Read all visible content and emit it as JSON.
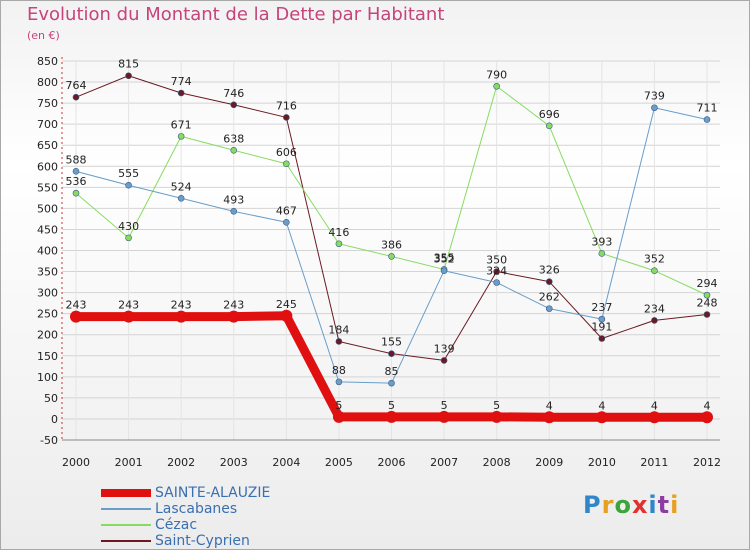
{
  "title": "Evolution du Montant de la Dette par Habitant",
  "subtitle": "(en €)",
  "logo": {
    "text": "Proxiti",
    "colors": [
      "#2f86c8",
      "#e8a020",
      "#3aa63a",
      "#e03030",
      "#2f86c8",
      "#8c3ea0",
      "#e8a020"
    ]
  },
  "chart_data": {
    "type": "line",
    "title": "Evolution du Montant de la Dette par Habitant",
    "ylabel": "(en €)",
    "x": [
      "2000",
      "2001",
      "2002",
      "2003",
      "2004",
      "2005",
      "2006",
      "2007",
      "2008",
      "2009",
      "2010",
      "2011",
      "2012"
    ],
    "ylim": [
      -50,
      850
    ],
    "yticks": [
      -50,
      0,
      50,
      100,
      150,
      200,
      250,
      300,
      350,
      400,
      450,
      500,
      550,
      600,
      650,
      700,
      750,
      800,
      850
    ],
    "grid": "horizontal",
    "legend_position": "bottom-left",
    "series": [
      {
        "name": "Saint-Cyprien",
        "color": "#6b1a22",
        "width": 1,
        "values": [
          764,
          815,
          774,
          746,
          716,
          184,
          155,
          139,
          350,
          326,
          191,
          234,
          248
        ]
      },
      {
        "name": "Cézac",
        "color": "#86dc60",
        "width": 1,
        "values": [
          536,
          430,
          671,
          638,
          606,
          416,
          386,
          355,
          790,
          696,
          393,
          352,
          294
        ]
      },
      {
        "name": "Lascabanes",
        "color": "#6a9ec8",
        "width": 1,
        "values": [
          588,
          555,
          524,
          493,
          467,
          88,
          85,
          352,
          324,
          262,
          237,
          739,
          711
        ]
      },
      {
        "name": "SAINTE-ALAUZIE",
        "color": "#e01010",
        "width": 9,
        "values": [
          243,
          243,
          243,
          243,
          245,
          5,
          5,
          5,
          5,
          4,
          4,
          4,
          4
        ]
      }
    ]
  }
}
